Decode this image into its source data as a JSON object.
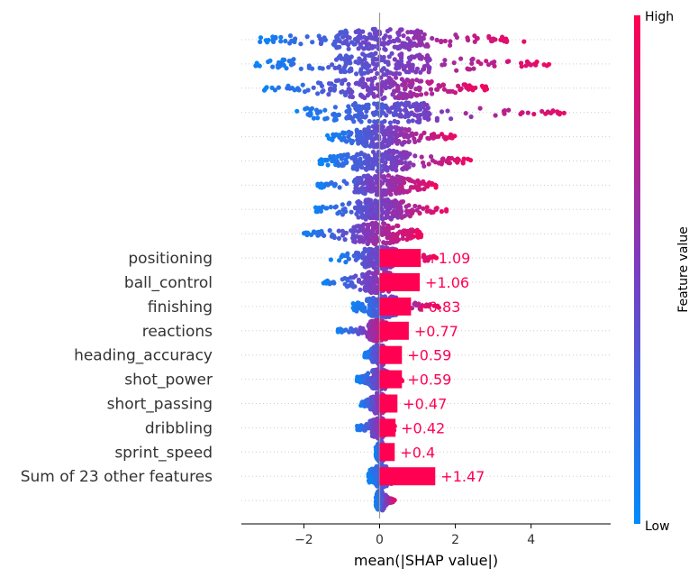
{
  "chart_data": {
    "type": "bar",
    "xlabel": "mean(|SHAP value|)",
    "xlim": [
      -3.65,
      6.1
    ],
    "xticks": [
      -2,
      0,
      2,
      4
    ],
    "categories": [
      "positioning",
      "ball_control",
      "finishing",
      "reactions",
      "heading_accuracy",
      "shot_power",
      "short_passing",
      "dribbling",
      "sprint_speed",
      "Sum of 23 other features"
    ],
    "values": [
      1.09,
      1.06,
      0.83,
      0.77,
      0.59,
      0.59,
      0.47,
      0.42,
      0.4,
      1.47
    ],
    "value_labels": [
      "+1.09",
      "+1.06",
      "+0.83",
      "+0.77",
      "+0.59",
      "+0.59",
      "+0.47",
      "+0.42",
      "+0.4",
      "+1.47"
    ],
    "bar_color": "#ff0052",
    "colorbar": {
      "title": "Feature value",
      "high_label": "High",
      "low_label": "Low",
      "high_color": "#ff0052",
      "mid_color": "#7a3dc0",
      "low_color": "#008bfb"
    },
    "beeswarm_rows": [
      {
        "min": -3.2,
        "max": 3.9,
        "q1": -1.2,
        "q3": 1.3
      },
      {
        "min": -3.3,
        "max": 4.6,
        "q1": -1.1,
        "q3": 1.4
      },
      {
        "min": -3.1,
        "max": 2.9,
        "q1": -1.0,
        "q3": 1.1
      },
      {
        "min": -2.3,
        "max": 5.1,
        "q1": -0.9,
        "q3": 1.3
      },
      {
        "min": -1.4,
        "max": 2.0,
        "q1": -0.6,
        "q3": 0.7
      },
      {
        "min": -1.6,
        "max": 2.5,
        "q1": -0.7,
        "q3": 0.8
      },
      {
        "min": -1.7,
        "max": 1.5,
        "q1": -0.6,
        "q3": 0.6
      },
      {
        "min": -1.7,
        "max": 1.8,
        "q1": -0.6,
        "q3": 0.6
      },
      {
        "min": -2.0,
        "max": 1.1,
        "q1": -0.7,
        "q3": 0.5
      },
      {
        "min": -1.3,
        "max": 1.5,
        "q1": -0.4,
        "q3": 0.4
      },
      {
        "min": -1.5,
        "max": 1.0,
        "q1": -0.4,
        "q3": 0.3
      },
      {
        "min": -0.7,
        "max": 1.6,
        "q1": -0.3,
        "q3": 0.5
      },
      {
        "min": -1.1,
        "max": 0.3,
        "q1": -0.3,
        "q3": 0.2
      },
      {
        "min": -0.4,
        "max": 0.4,
        "q1": -0.2,
        "q3": 0.2
      },
      {
        "min": -0.6,
        "max": 0.6,
        "q1": -0.2,
        "q3": 0.2
      },
      {
        "min": -0.5,
        "max": 0.3,
        "q1": -0.2,
        "q3": 0.15
      },
      {
        "min": -0.6,
        "max": 0.4,
        "q1": -0.2,
        "q3": 0.15
      },
      {
        "min": -0.1,
        "max": 0.3,
        "q1": -0.05,
        "q3": 0.1
      },
      {
        "min": -0.3,
        "max": 1.0,
        "q1": -0.1,
        "q3": 0.2
      },
      {
        "min": -0.1,
        "max": 0.4,
        "q1": -0.05,
        "q3": 0.1
      }
    ]
  }
}
